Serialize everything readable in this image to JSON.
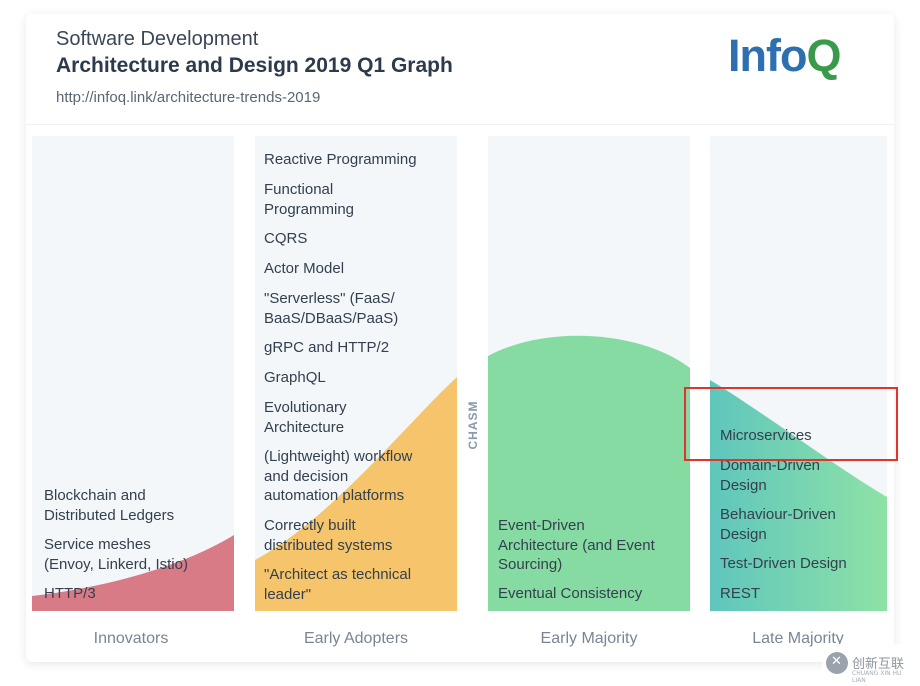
{
  "header": {
    "subtitle": "Software Development",
    "title": "Architecture and Design 2019 Q1 Graph",
    "url": "http://infoq.link/architecture-trends-2019",
    "logo_part1": "Info",
    "logo_part2": "Q"
  },
  "columns": [
    {
      "label": "Innovators",
      "color": "#d97b86",
      "items": [
        "Blockchain and\nDistributed Ledgers",
        "Service meshes\n(Envoy, Linkerd, Istio)",
        "HTTP/3"
      ]
    },
    {
      "label": "Early Adopters",
      "color": "#f6c46a",
      "items": [
        "Reactive Programming",
        "Functional\nProgramming",
        "CQRS",
        "Actor Model",
        "\"Serverless\" (FaaS/\nBaaS/DBaaS/PaaS)",
        "gRPC and HTTP/2",
        "GraphQL",
        "Evolutionary\nArchitecture",
        "(Lightweight) workflow\nand decision\nautomation platforms",
        "Correctly built\ndistributed systems",
        "\"Architect as technical\nleader\""
      ]
    },
    {
      "label": "Early Majority",
      "color": "#86dba2",
      "items": [
        "Event-Driven\nArchitecture (and Event\nSourcing)",
        "Eventual Consistency"
      ]
    },
    {
      "label": "Late Majority",
      "color": "#6fd1ae",
      "items": [
        "Microservices",
        "Domain-Driven\nDesign",
        "Behaviour-Driven\nDesign",
        "Test-Driven Design",
        "REST"
      ]
    }
  ],
  "chasm_label": "CHASM",
  "watermark": {
    "text": "创新互联",
    "sub": "CHUANG XIN HU LIAN"
  }
}
